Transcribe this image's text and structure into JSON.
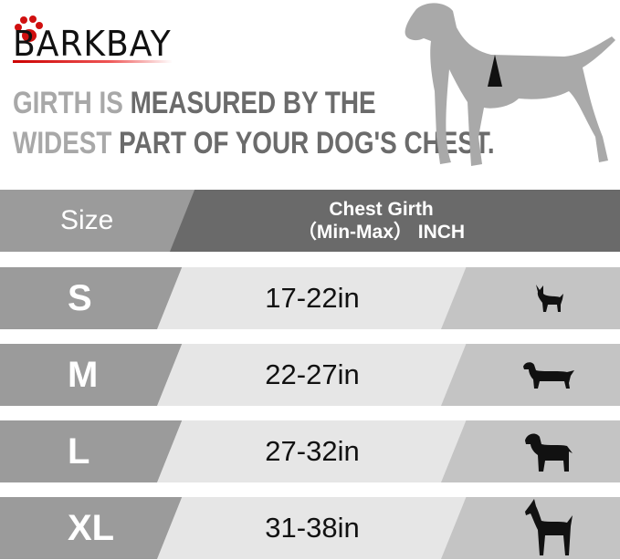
{
  "brand": {
    "name": "BARKBAY",
    "accent": "#d01010"
  },
  "tagline": {
    "line1_a": "GIRTH IS ",
    "line1_b": "MEASURED BY THE",
    "line2_a": "WIDEST ",
    "line2_b": "PART OF YOUR DOG'S CHEST."
  },
  "header": {
    "size": "Size",
    "girth_line1": "Chest Girth",
    "girth_line2": "（Min-Max） INCH"
  },
  "rows": [
    {
      "size": "S",
      "girth": "17-22in",
      "icon": "chihuahua-icon"
    },
    {
      "size": "M",
      "girth": "22-27in",
      "icon": "dachshund-icon"
    },
    {
      "size": "L",
      "girth": "27-32in",
      "icon": "labrador-icon"
    },
    {
      "size": "XL",
      "girth": "31-38in",
      "icon": "great-dane-icon"
    }
  ]
}
